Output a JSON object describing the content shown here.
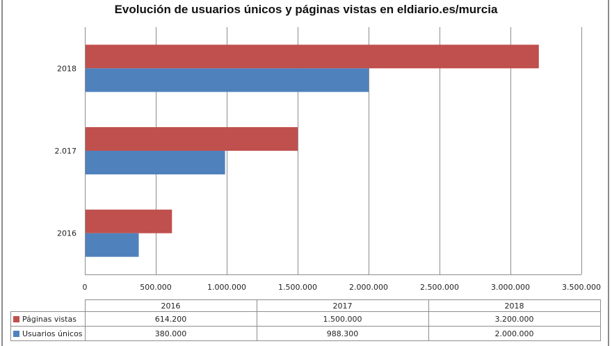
{
  "chart_data": {
    "type": "bar",
    "orientation": "horizontal",
    "title": "Evolución de usuarios únicos y páginas vistas en eldiario.es/murcia",
    "categories": [
      "2016",
      "2.017",
      "2018"
    ],
    "series": [
      {
        "name": "Páginas vistas",
        "color": "#C0504D",
        "values": [
          614200,
          1500000,
          3200000
        ]
      },
      {
        "name": "Usuarios únicos",
        "color": "#4F81BD",
        "values": [
          380000,
          988300,
          2000000
        ]
      }
    ],
    "xlim": [
      0,
      3500000
    ],
    "x_ticks": [
      0,
      500000,
      1000000,
      1500000,
      2000000,
      2500000,
      3000000,
      3500000
    ],
    "x_tick_labels": [
      "0",
      "500.000",
      "1.000.000",
      "1.500.000",
      "2.000.000",
      "2.500.000",
      "3.000.000",
      "3.500.000"
    ],
    "grid": "vertical",
    "legend": "data-table-below",
    "data_table": {
      "columns": [
        "2016",
        "2017",
        "2018"
      ],
      "rows": [
        {
          "series": "Páginas vistas",
          "color": "#C0504D",
          "cells": [
            "614.200",
            "1.500.000",
            "3.200.000"
          ]
        },
        {
          "series": "Usuarios únicos",
          "color": "#4F81BD",
          "cells": [
            "380.000",
            "988.300",
            "2.000.000"
          ]
        }
      ]
    }
  }
}
